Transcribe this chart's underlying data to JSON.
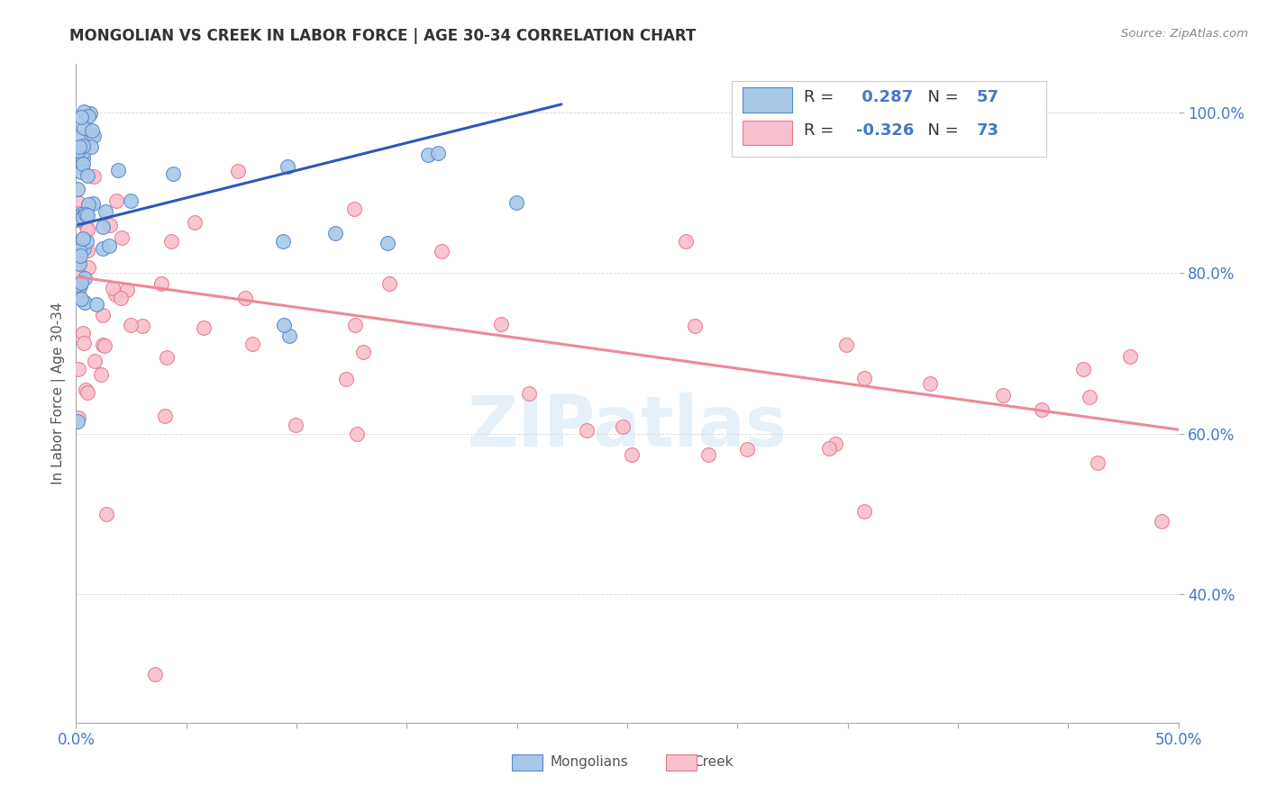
{
  "title": "MONGOLIAN VS CREEK IN LABOR FORCE | AGE 30-34 CORRELATION CHART",
  "source": "Source: ZipAtlas.com",
  "ylabel": "In Labor Force | Age 30-34",
  "xlim": [
    0.0,
    0.5
  ],
  "ylim": [
    0.24,
    1.06
  ],
  "xtick_positions": [
    0.0,
    0.05,
    0.1,
    0.15,
    0.2,
    0.25,
    0.3,
    0.35,
    0.4,
    0.45,
    0.5
  ],
  "xticklabels": [
    "0.0%",
    "",
    "",
    "",
    "",
    "",
    "",
    "",
    "",
    "",
    "50.0%"
  ],
  "ytick_positions": [
    0.4,
    0.6,
    0.8,
    1.0
  ],
  "yticklabels": [
    "40.0%",
    "60.0%",
    "80.0%",
    "100.0%"
  ],
  "mongolian_color": "#a8c8e8",
  "mongolian_edge_color": "#5588cc",
  "creek_color": "#f8c0cc",
  "creek_edge_color": "#e87888",
  "mongolian_R": 0.287,
  "mongolian_N": 57,
  "creek_R": -0.326,
  "creek_N": 73,
  "mongolian_line_color": "#3355bb",
  "creek_line_color": "#ee8899",
  "watermark": "ZIPatlas",
  "background_color": "#ffffff",
  "mongolian_line_x0": 0.001,
  "mongolian_line_x1": 0.22,
  "mongolian_line_y0": 0.86,
  "mongolian_line_y1": 1.01,
  "creek_line_x0": 0.001,
  "creek_line_x1": 0.5,
  "creek_line_y0": 0.795,
  "creek_line_y1": 0.605
}
